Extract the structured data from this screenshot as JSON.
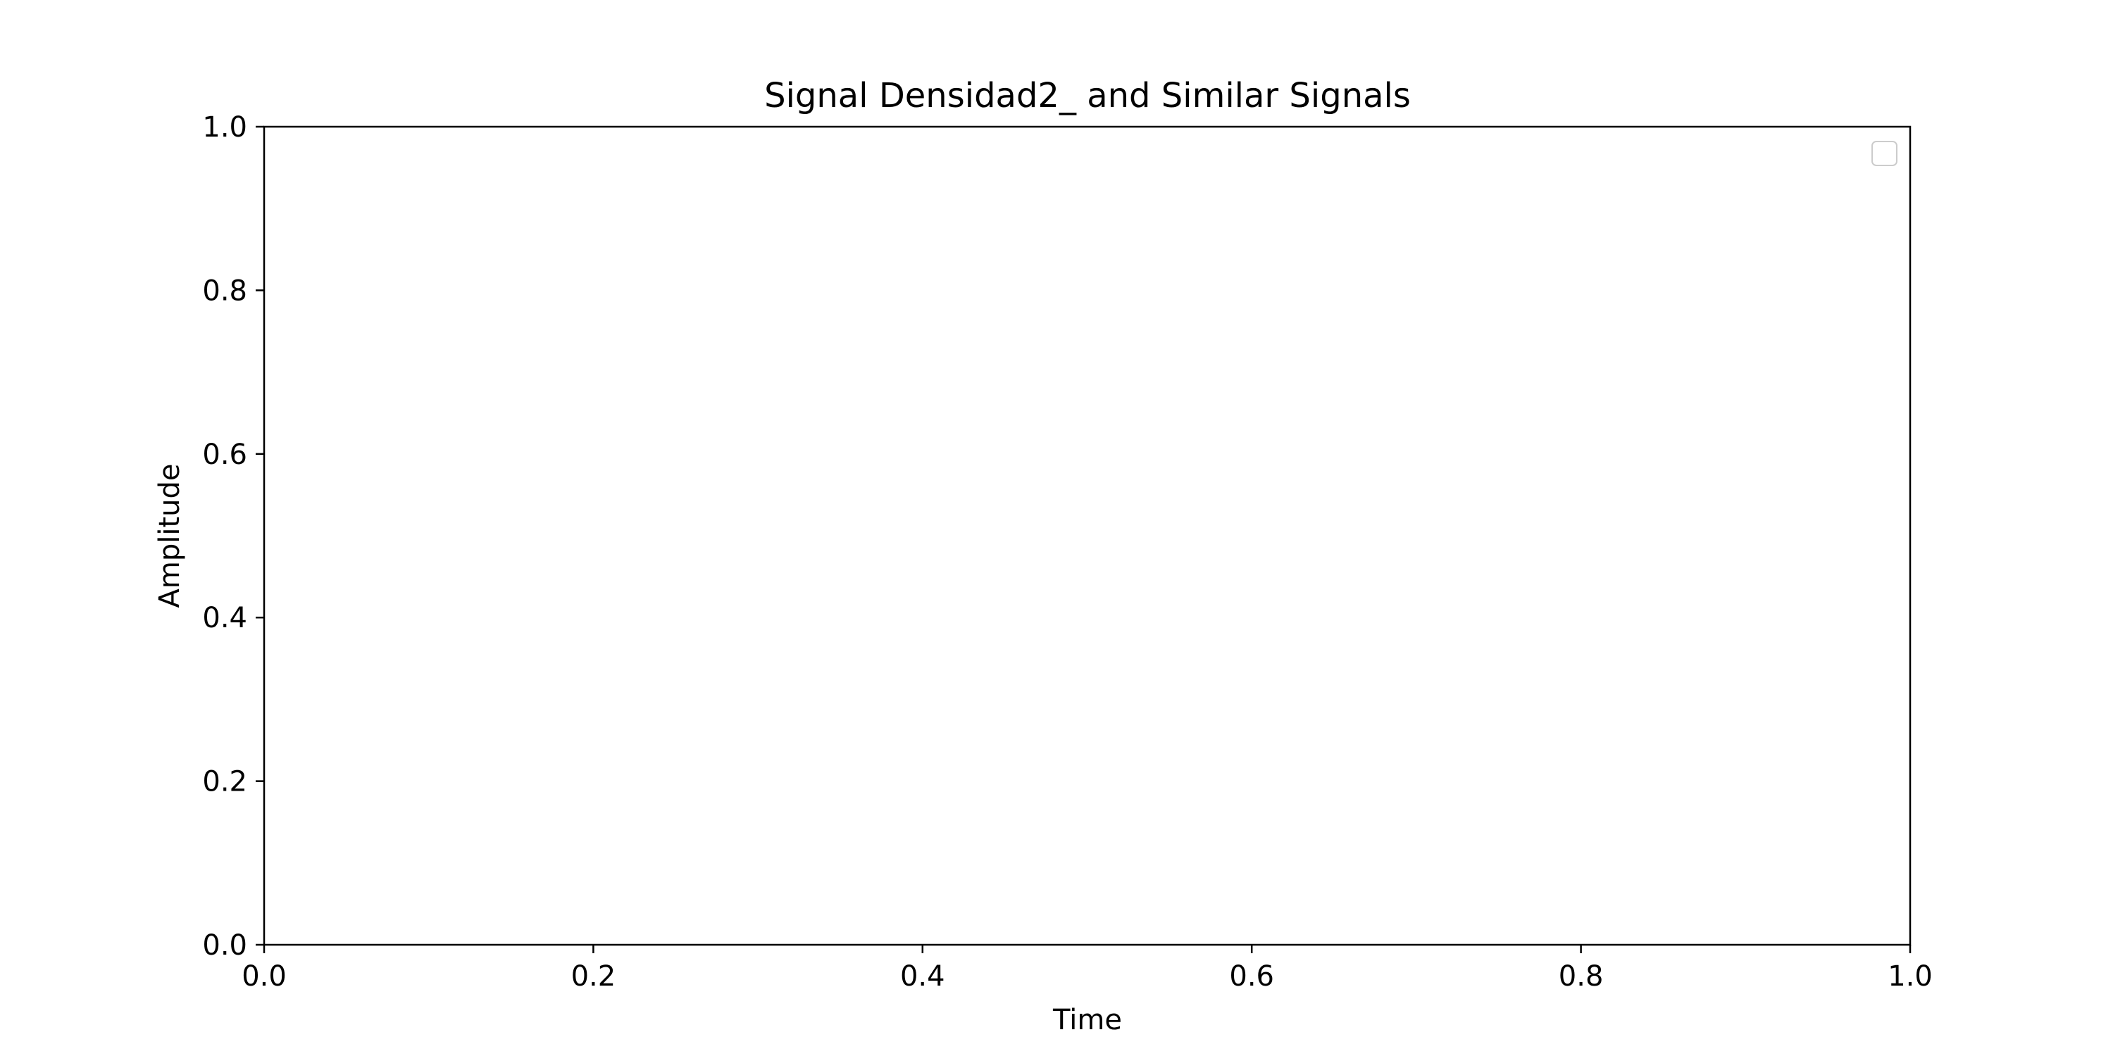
{
  "chart_data": {
    "type": "line",
    "title": "Signal Densidad2_ and Similar Signals",
    "xlabel": "Time",
    "ylabel": "Amplitude",
    "xlim": [
      0.0,
      1.0
    ],
    "ylim": [
      0.0,
      1.0
    ],
    "x_ticks": [
      "0.0",
      "0.2",
      "0.4",
      "0.6",
      "0.8",
      "1.0"
    ],
    "y_ticks": [
      "0.0",
      "0.2",
      "0.4",
      "0.6",
      "0.8",
      "1.0"
    ],
    "series": [],
    "legend": {
      "placement": "upper right",
      "entries": []
    },
    "grid": false,
    "colors": {
      "axes": "#000000",
      "background": "#ffffff",
      "legend_border": "#cccccc"
    }
  }
}
